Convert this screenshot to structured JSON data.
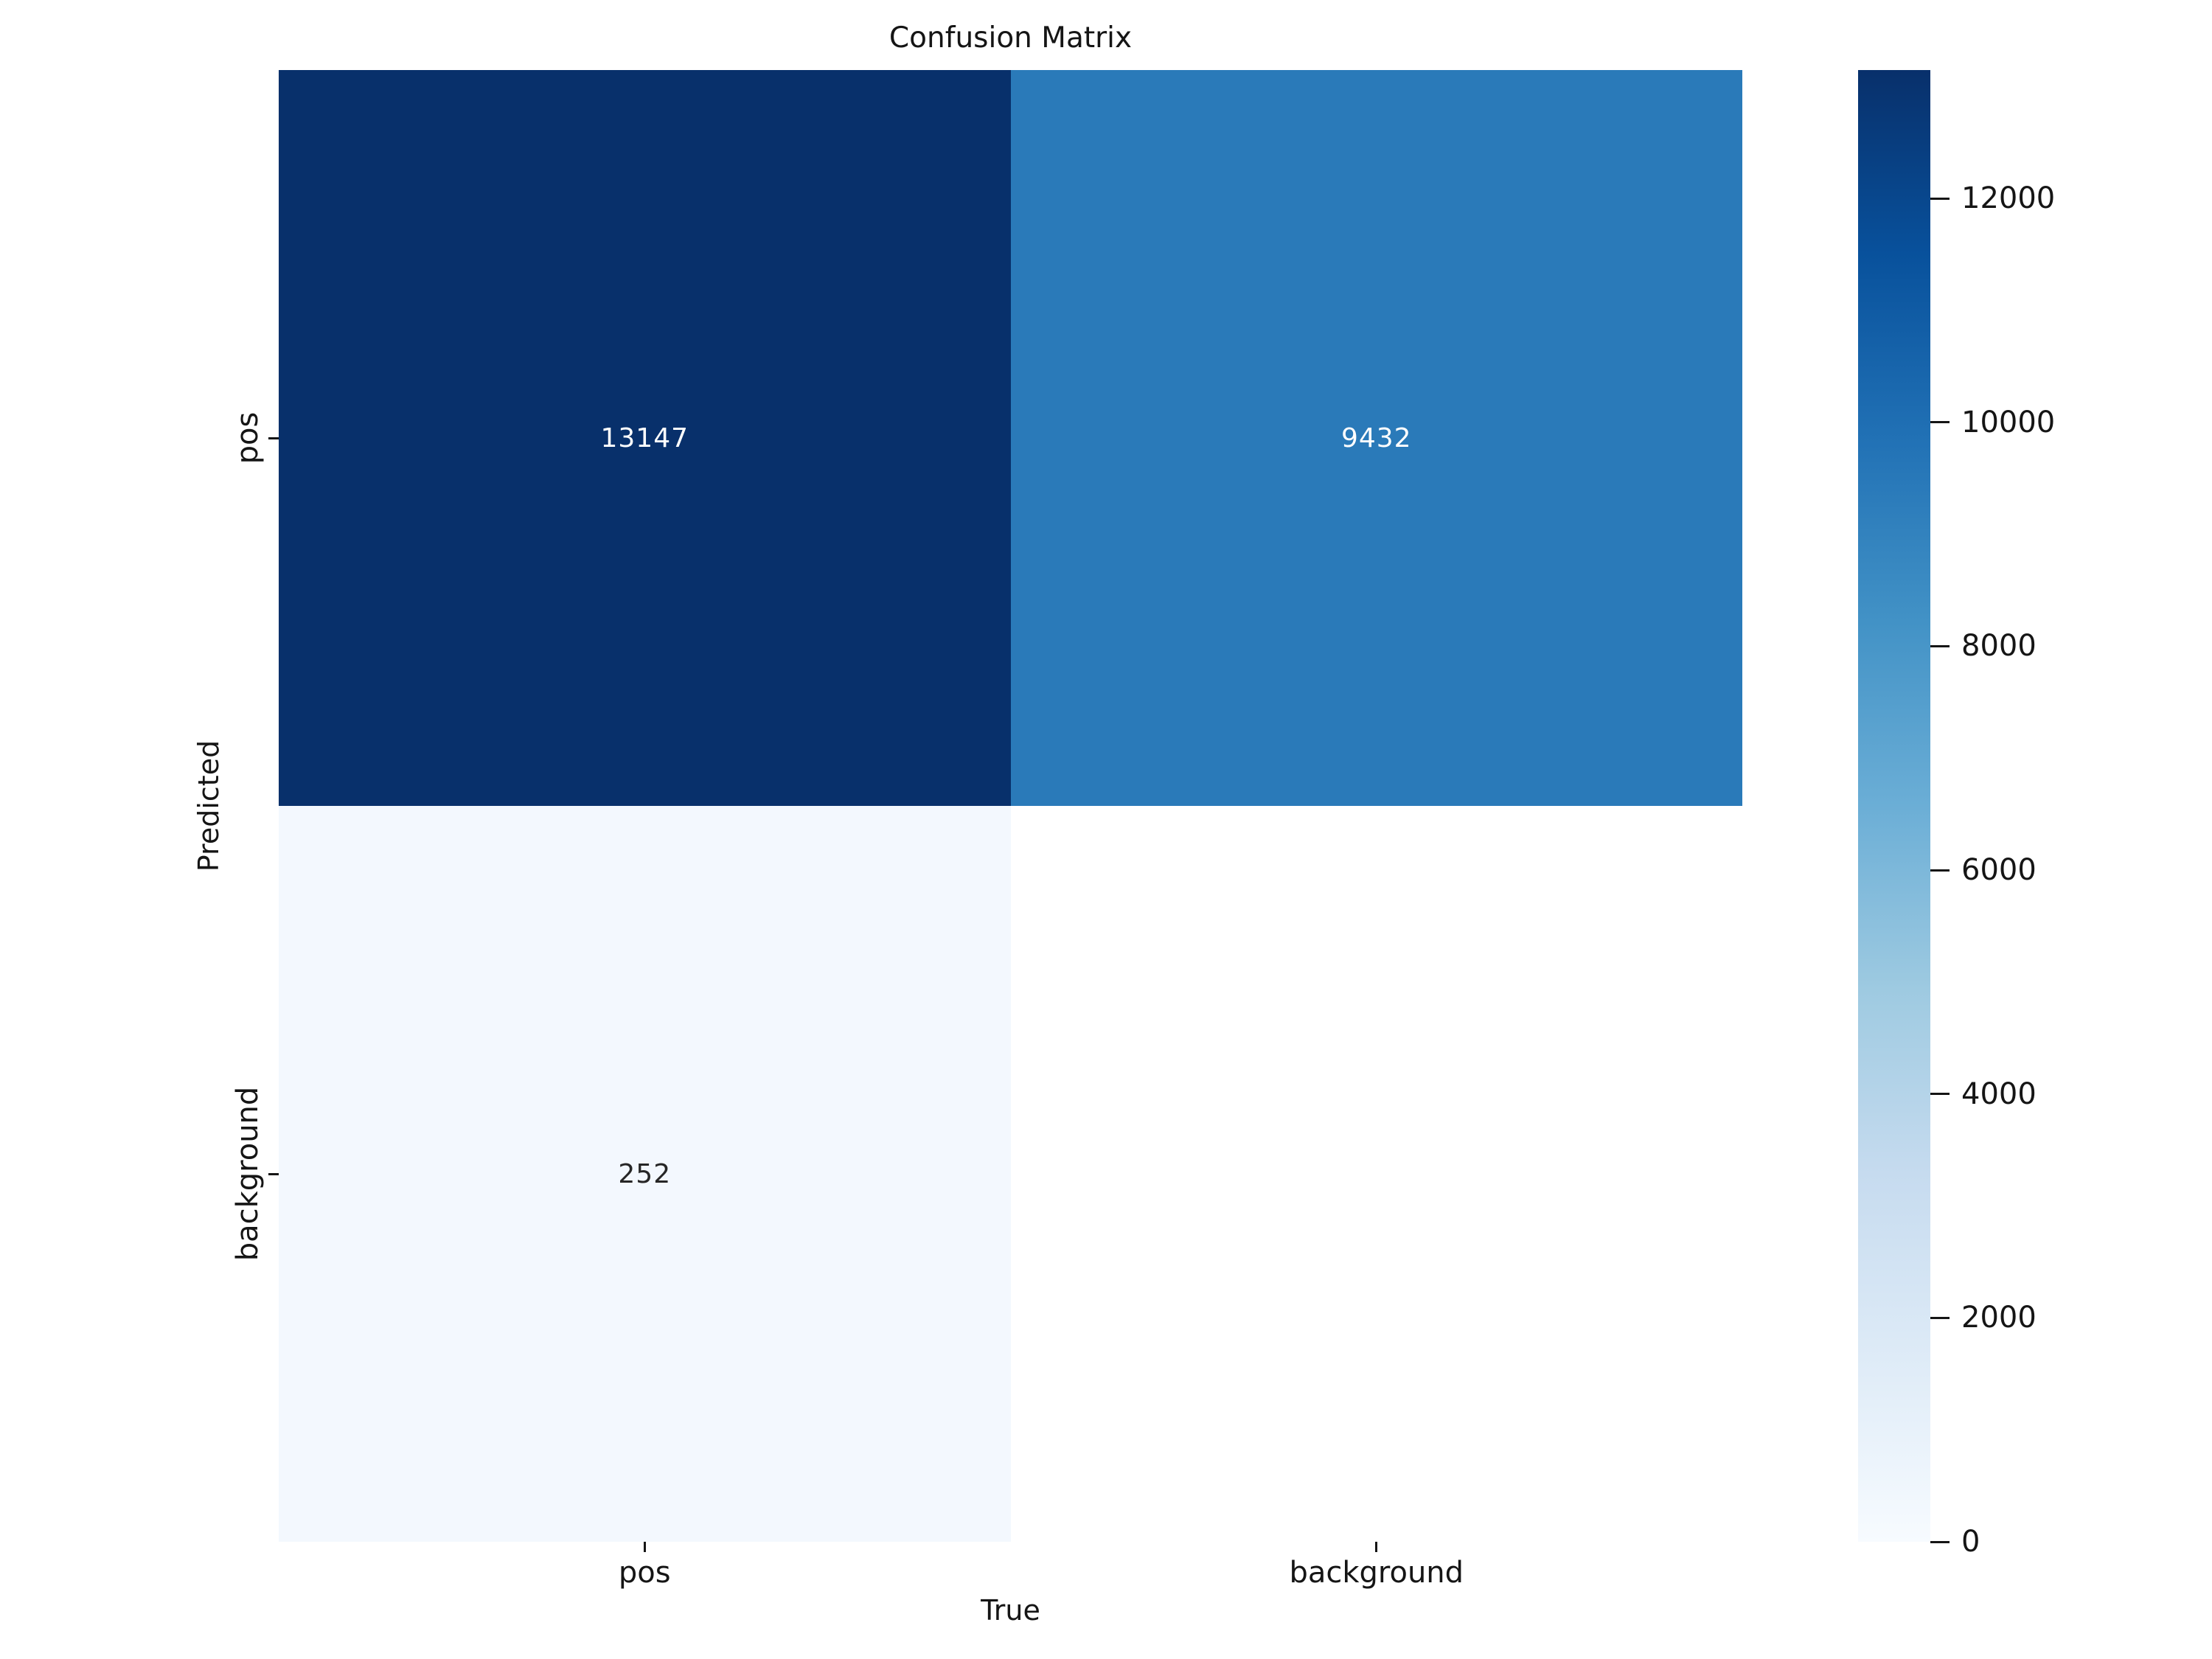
{
  "chart_data": {
    "type": "heatmap",
    "title": "Confusion Matrix",
    "xlabel": "True",
    "ylabel": "Predicted",
    "x_categories": [
      "pos",
      "background"
    ],
    "y_categories": [
      "pos",
      "background"
    ],
    "matrix": [
      [
        13147,
        9432
      ],
      [
        252,
        null
      ]
    ],
    "annotations": [
      [
        "13147",
        "9432"
      ],
      [
        "252",
        ""
      ]
    ],
    "vmin": 0,
    "vmax": 13147,
    "colormap": "Blues",
    "grid": false,
    "legend": false,
    "cell_colors": [
      [
        "#08306b",
        "#2a7ab9"
      ],
      [
        "#f3f8fe",
        "#ffffff"
      ]
    ],
    "cell_text_colors": [
      [
        "#ffffff",
        "#ffffff"
      ],
      [
        "#262626",
        "#262626"
      ]
    ],
    "colorbar": {
      "position": "right",
      "ticks": [
        12000,
        10000,
        8000,
        6000,
        4000,
        2000,
        0
      ],
      "tick_labels": [
        "12000",
        "10000",
        "8000",
        "6000",
        "4000",
        "2000",
        "0"
      ],
      "gradient_stops": [
        {
          "color": "#08306b",
          "pos": 0
        },
        {
          "color": "#08519c",
          "pos": 12.5
        },
        {
          "color": "#2171b5",
          "pos": 25
        },
        {
          "color": "#4292c6",
          "pos": 37.5
        },
        {
          "color": "#6baed6",
          "pos": 50
        },
        {
          "color": "#9ecae1",
          "pos": 62.5
        },
        {
          "color": "#c6dbef",
          "pos": 75
        },
        {
          "color": "#deebf7",
          "pos": 87.5
        },
        {
          "color": "#f7fbff",
          "pos": 100
        }
      ]
    },
    "text_color": "#151515"
  }
}
